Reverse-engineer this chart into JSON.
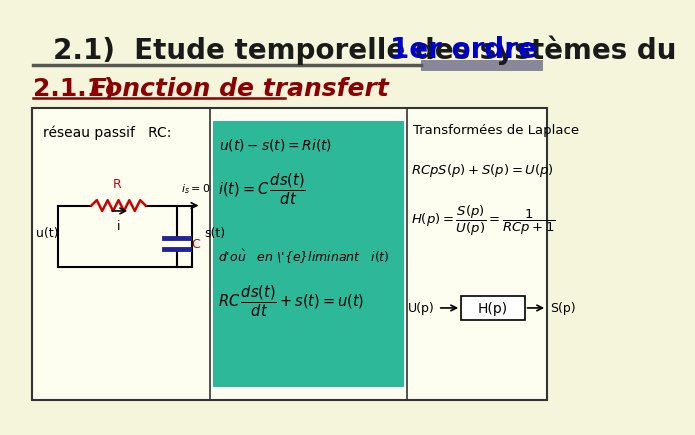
{
  "bg_color": "#f5f5dc",
  "title_text1": "2.1)  Etude temporelle des systèmes du ",
  "title_text2": "1er ordre",
  "title_color1": "#1a1a1a",
  "title_color2": "#0000cc",
  "subtitle_num": "2.1.1) ",
  "subtitle_text": "Fonction de transfert",
  "subtitle_num_color": "#8b0000",
  "subtitle_text_color": "#8b0000",
  "hline_color": "#555555",
  "green_box_color": "#2db89a",
  "panel_border_color": "#333333",
  "laplace_title": "Transformées de Laplace",
  "reseau_text": "réseau passif   RC:",
  "font_title_size": 20,
  "font_subtitle_size": 18
}
